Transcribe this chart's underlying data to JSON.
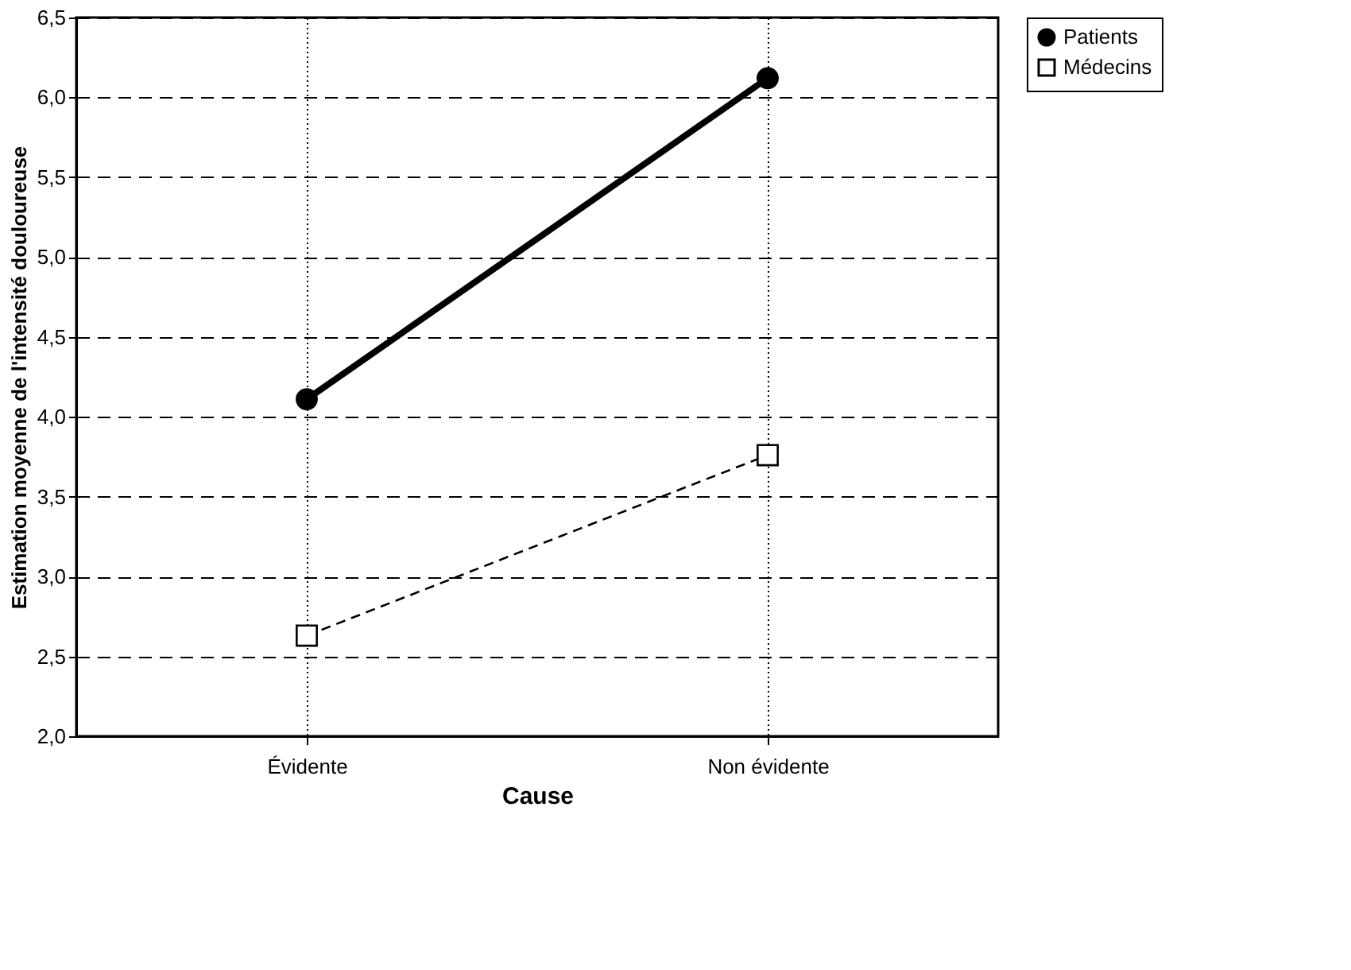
{
  "chart_data": {
    "type": "line",
    "xlabel": "Cause",
    "ylabel": "Estimation moyenne de l'intensité douloureuse",
    "categories": [
      "Évidente",
      "Non évidente"
    ],
    "series": [
      {
        "name": "Patients",
        "color": "#000000",
        "values": [
          4.11,
          6.12
        ],
        "marker": "circle",
        "line_style": "solid"
      },
      {
        "name": "Médecins",
        "color": "#000000",
        "values": [
          2.63,
          3.76
        ],
        "marker": "square",
        "line_style": "dashed"
      }
    ],
    "ylim": [
      2.0,
      6.5
    ],
    "yticks": [
      {
        "value": 2.0,
        "label": "2,0"
      },
      {
        "value": 2.5,
        "label": "2,5"
      },
      {
        "value": 3.0,
        "label": "3,0"
      },
      {
        "value": 3.5,
        "label": "3,5"
      },
      {
        "value": 4.0,
        "label": "4,0"
      },
      {
        "value": 4.5,
        "label": "4,5"
      },
      {
        "value": 5.0,
        "label": "5,0"
      },
      {
        "value": 5.5,
        "label": "5,5"
      },
      {
        "value": 6.0,
        "label": "6,0"
      },
      {
        "value": 6.5,
        "label": "6,5"
      }
    ],
    "grid": true,
    "legend": "right"
  }
}
